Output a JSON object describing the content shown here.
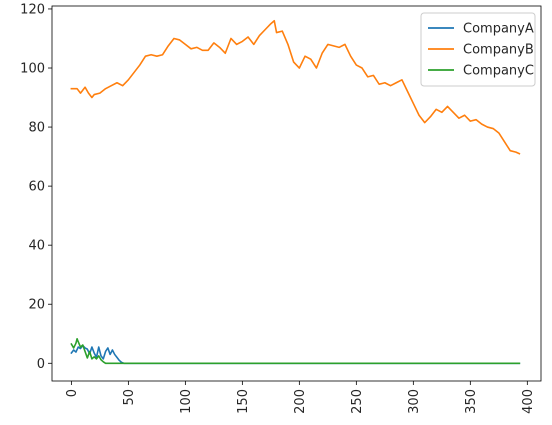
{
  "chart_data": {
    "type": "line",
    "title": "",
    "xlabel": "",
    "ylabel": "",
    "xlim": [
      -17,
      412
    ],
    "ylim": [
      -6,
      121
    ],
    "x_ticks": [
      0,
      50,
      100,
      150,
      200,
      250,
      300,
      350,
      400
    ],
    "y_ticks": [
      0,
      20,
      40,
      60,
      80,
      100,
      120
    ],
    "x_tick_rotation": 90,
    "grid": false,
    "legend": "top-right",
    "series": [
      {
        "name": "CompanyA",
        "color": "#1f77b4",
        "x": [
          0,
          2,
          4,
          6,
          8,
          10,
          12,
          14,
          16,
          18,
          20,
          22,
          24,
          26,
          28,
          30,
          32,
          34,
          36,
          38,
          40,
          42,
          44,
          46,
          50,
          100,
          150,
          200,
          250,
          300,
          350,
          393
        ],
        "y": [
          3.5,
          4.5,
          3.8,
          5.5,
          5.0,
          6.0,
          5.2,
          4.8,
          3.2,
          5.5,
          3.5,
          2.0,
          5.5,
          2.5,
          1.5,
          4.0,
          5.2,
          3.0,
          4.5,
          3.0,
          2.0,
          1.0,
          0.3,
          0,
          0,
          0,
          0,
          0,
          0,
          0,
          0,
          0
        ]
      },
      {
        "name": "CompanyB",
        "color": "#ff7f0e",
        "x": [
          0,
          5,
          8,
          12,
          15,
          18,
          20,
          25,
          30,
          35,
          40,
          45,
          50,
          55,
          60,
          65,
          70,
          75,
          80,
          85,
          90,
          95,
          100,
          105,
          110,
          115,
          120,
          125,
          130,
          135,
          140,
          145,
          150,
          155,
          160,
          165,
          170,
          175,
          178,
          180,
          185,
          190,
          195,
          200,
          205,
          210,
          215,
          220,
          225,
          230,
          235,
          240,
          245,
          250,
          255,
          260,
          265,
          270,
          275,
          280,
          285,
          290,
          295,
          300,
          305,
          310,
          315,
          320,
          325,
          330,
          335,
          340,
          345,
          350,
          355,
          360,
          365,
          370,
          375,
          380,
          385,
          390,
          393
        ],
        "y": [
          93,
          93,
          91.5,
          93.5,
          91.5,
          90,
          91,
          91.5,
          93,
          94,
          95,
          94,
          96,
          98.5,
          101,
          104,
          104.5,
          104,
          104.5,
          107.5,
          110,
          109.5,
          108,
          106.5,
          107,
          106,
          106,
          108.5,
          107,
          105,
          110,
          108,
          109,
          110.5,
          108,
          111,
          113,
          115,
          116,
          112,
          112.5,
          108,
          102,
          100,
          104,
          103,
          100,
          105,
          108,
          107.5,
          107,
          108,
          104,
          101,
          100,
          97,
          97.5,
          94.5,
          95,
          94,
          95,
          96,
          92,
          88,
          84,
          81.5,
          83.5,
          86,
          85,
          87,
          85,
          83,
          84,
          82,
          82.5,
          81,
          80,
          79.5,
          78,
          75,
          72,
          71.5,
          71
        ]
      },
      {
        "name": "CompanyC",
        "color": "#2ca02c",
        "x": [
          0,
          2,
          4,
          5,
          6,
          8,
          10,
          12,
          14,
          16,
          18,
          20,
          22,
          24,
          26,
          28,
          30,
          32,
          50,
          100,
          150,
          200,
          250,
          300,
          350,
          393
        ],
        "y": [
          6.5,
          5.2,
          6.8,
          8.3,
          7.3,
          5.5,
          6.2,
          4.0,
          1.8,
          4.0,
          1.5,
          2.2,
          1.5,
          2.5,
          1.2,
          0.5,
          0,
          0,
          0,
          0,
          0,
          0,
          0,
          0,
          0,
          0
        ]
      }
    ]
  }
}
